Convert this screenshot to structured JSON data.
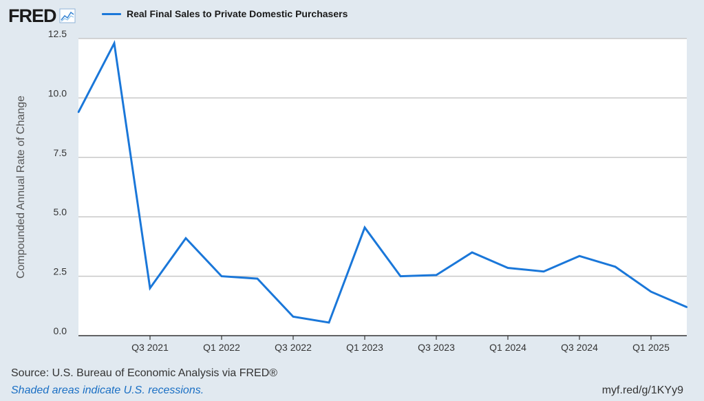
{
  "header": {
    "logo_text": "FRED",
    "logo_icon": "line-chart-icon",
    "legend_label": "Real Final Sales to Private Domestic Purchasers",
    "series_color": "#1a77d9"
  },
  "chart_data": {
    "type": "line",
    "title": "",
    "xlabel": "",
    "ylabel": "Compounded Annual Rate of Change",
    "ylim": [
      0,
      12.5
    ],
    "yticks": [
      "0.0",
      "2.5",
      "5.0",
      "7.5",
      "10.0",
      "12.5"
    ],
    "grid": true,
    "x": [
      "2021-Q1",
      "2021-Q2",
      "2021-Q3",
      "2021-Q4",
      "2022-Q1",
      "2022-Q2",
      "2022-Q3",
      "2022-Q4",
      "2023-Q1",
      "2023-Q2",
      "2023-Q3",
      "2023-Q4",
      "2024-Q1",
      "2024-Q2",
      "2024-Q3",
      "2024-Q4",
      "2025-Q1",
      "2025-Q2"
    ],
    "xtick_labels": [
      {
        "x": "2021-Q3",
        "label": "Q3 2021"
      },
      {
        "x": "2022-Q1",
        "label": "Q1 2022"
      },
      {
        "x": "2022-Q3",
        "label": "Q3 2022"
      },
      {
        "x": "2023-Q1",
        "label": "Q1 2023"
      },
      {
        "x": "2023-Q3",
        "label": "Q3 2023"
      },
      {
        "x": "2024-Q1",
        "label": "Q1 2024"
      },
      {
        "x": "2024-Q3",
        "label": "Q3 2024"
      },
      {
        "x": "2025-Q1",
        "label": "Q1 2025"
      }
    ],
    "series": [
      {
        "color": "#1a77d9",
        "values": [
          9.4,
          12.3,
          2.0,
          4.1,
          2.5,
          2.4,
          0.8,
          0.55,
          4.55,
          2.5,
          2.55,
          3.5,
          2.85,
          2.7,
          3.35,
          2.9,
          1.85,
          1.2
        ]
      }
    ]
  },
  "footer": {
    "source": "Source: U.S. Bureau of Economic Analysis via FRED®",
    "note": "Shaded areas indicate U.S. recessions.",
    "link": "myf.red/g/1KYy9"
  }
}
